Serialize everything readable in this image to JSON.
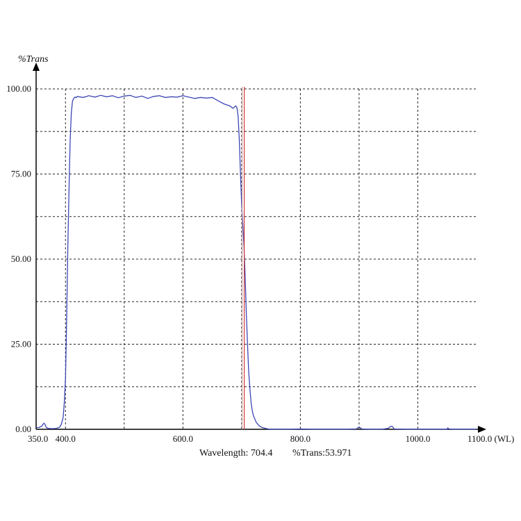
{
  "chart_data": {
    "type": "line",
    "title": "",
    "ylabel": "%Trans",
    "xlabel": "(WL)",
    "xlim": [
      350.0,
      1100.0
    ],
    "ylim": [
      0.0,
      100.0
    ],
    "x_ticks": [
      {
        "value": 350,
        "label": "350.0"
      },
      {
        "value": 400,
        "label": "400.0"
      },
      {
        "value": 600,
        "label": "600.0"
      },
      {
        "value": 800,
        "label": "800.0"
      },
      {
        "value": 1000,
        "label": "1000.0"
      },
      {
        "value": 1100,
        "label": "1100.0"
      }
    ],
    "y_ticks": [
      {
        "value": 0,
        "label": "0.00"
      },
      {
        "value": 25,
        "label": "25.00"
      },
      {
        "value": 50,
        "label": "50.00"
      },
      {
        "value": 75,
        "label": "75.00"
      },
      {
        "value": 100,
        "label": "100.00"
      }
    ],
    "grid_x": [
      400,
      500,
      600,
      700,
      800,
      900,
      1000
    ],
    "grid_y": [
      12.5,
      25,
      37.5,
      50,
      62.5,
      75,
      87.5,
      100
    ],
    "grid": true,
    "colors": {
      "series": "#3c46b4",
      "cursor": "#d23c3c",
      "grid": "#222222",
      "axis": "#000000"
    },
    "cursor": {
      "wavelength": 704.4,
      "trans": 53.971
    },
    "readout": {
      "wavelength_label": "Wavelength: 704.4",
      "trans_label": "%Trans:53.971"
    },
    "series": [
      {
        "x": [
          350,
          355,
          360,
          363,
          365,
          367,
          370,
          375,
          380,
          385,
          390,
          393,
          396,
          398,
          400,
          402,
          404,
          406,
          408,
          410,
          412,
          414,
          416,
          418,
          420,
          430,
          440,
          450,
          460,
          470,
          480,
          490,
          500,
          510,
          520,
          530,
          540,
          550,
          560,
          570,
          580,
          590,
          600,
          610,
          620,
          630,
          640,
          650,
          660,
          670,
          680,
          685,
          690,
          692,
          694,
          696,
          698,
          700,
          702,
          704,
          706,
          708,
          710,
          712,
          714,
          716,
          718,
          720,
          725,
          730,
          735,
          740,
          745,
          750,
          760,
          780,
          800,
          820,
          840,
          860,
          880,
          895,
          900,
          905,
          920,
          940,
          950,
          953,
          956,
          960,
          980,
          1000,
          1020,
          1040,
          1050,
          1051,
          1053,
          1060,
          1080,
          1100
        ],
        "y": [
          0.5,
          0.5,
          1.0,
          1.8,
          1.5,
          0.6,
          0.3,
          0.2,
          0.2,
          0.3,
          0.6,
          1.5,
          3.5,
          8.0,
          15.0,
          33.0,
          53.0,
          70.0,
          85.0,
          93.0,
          96.5,
          97.2,
          97.6,
          97.4,
          97.8,
          97.5,
          98.0,
          97.6,
          98.1,
          97.7,
          98.0,
          97.4,
          97.9,
          98.1,
          97.5,
          97.9,
          97.2,
          97.8,
          98.0,
          97.5,
          97.7,
          97.6,
          98.0,
          97.6,
          97.2,
          97.5,
          97.3,
          97.5,
          96.5,
          95.6,
          95.0,
          94.3,
          95.0,
          94.5,
          92.0,
          85.0,
          75.0,
          66.0,
          60.0,
          54.0,
          45.0,
          34.0,
          25.0,
          17.0,
          12.0,
          8.0,
          5.5,
          4.0,
          2.0,
          1.0,
          0.5,
          0.3,
          0.1,
          0.05,
          0.05,
          0.05,
          0.1,
          0.05,
          0.05,
          0.05,
          0.05,
          0.1,
          0.7,
          0.1,
          0.05,
          0.05,
          0.3,
          0.8,
          0.9,
          0.1,
          0.05,
          0.05,
          0.05,
          0.05,
          0.05,
          0.4,
          0.1,
          0.05,
          0.05,
          0.05
        ]
      }
    ]
  }
}
